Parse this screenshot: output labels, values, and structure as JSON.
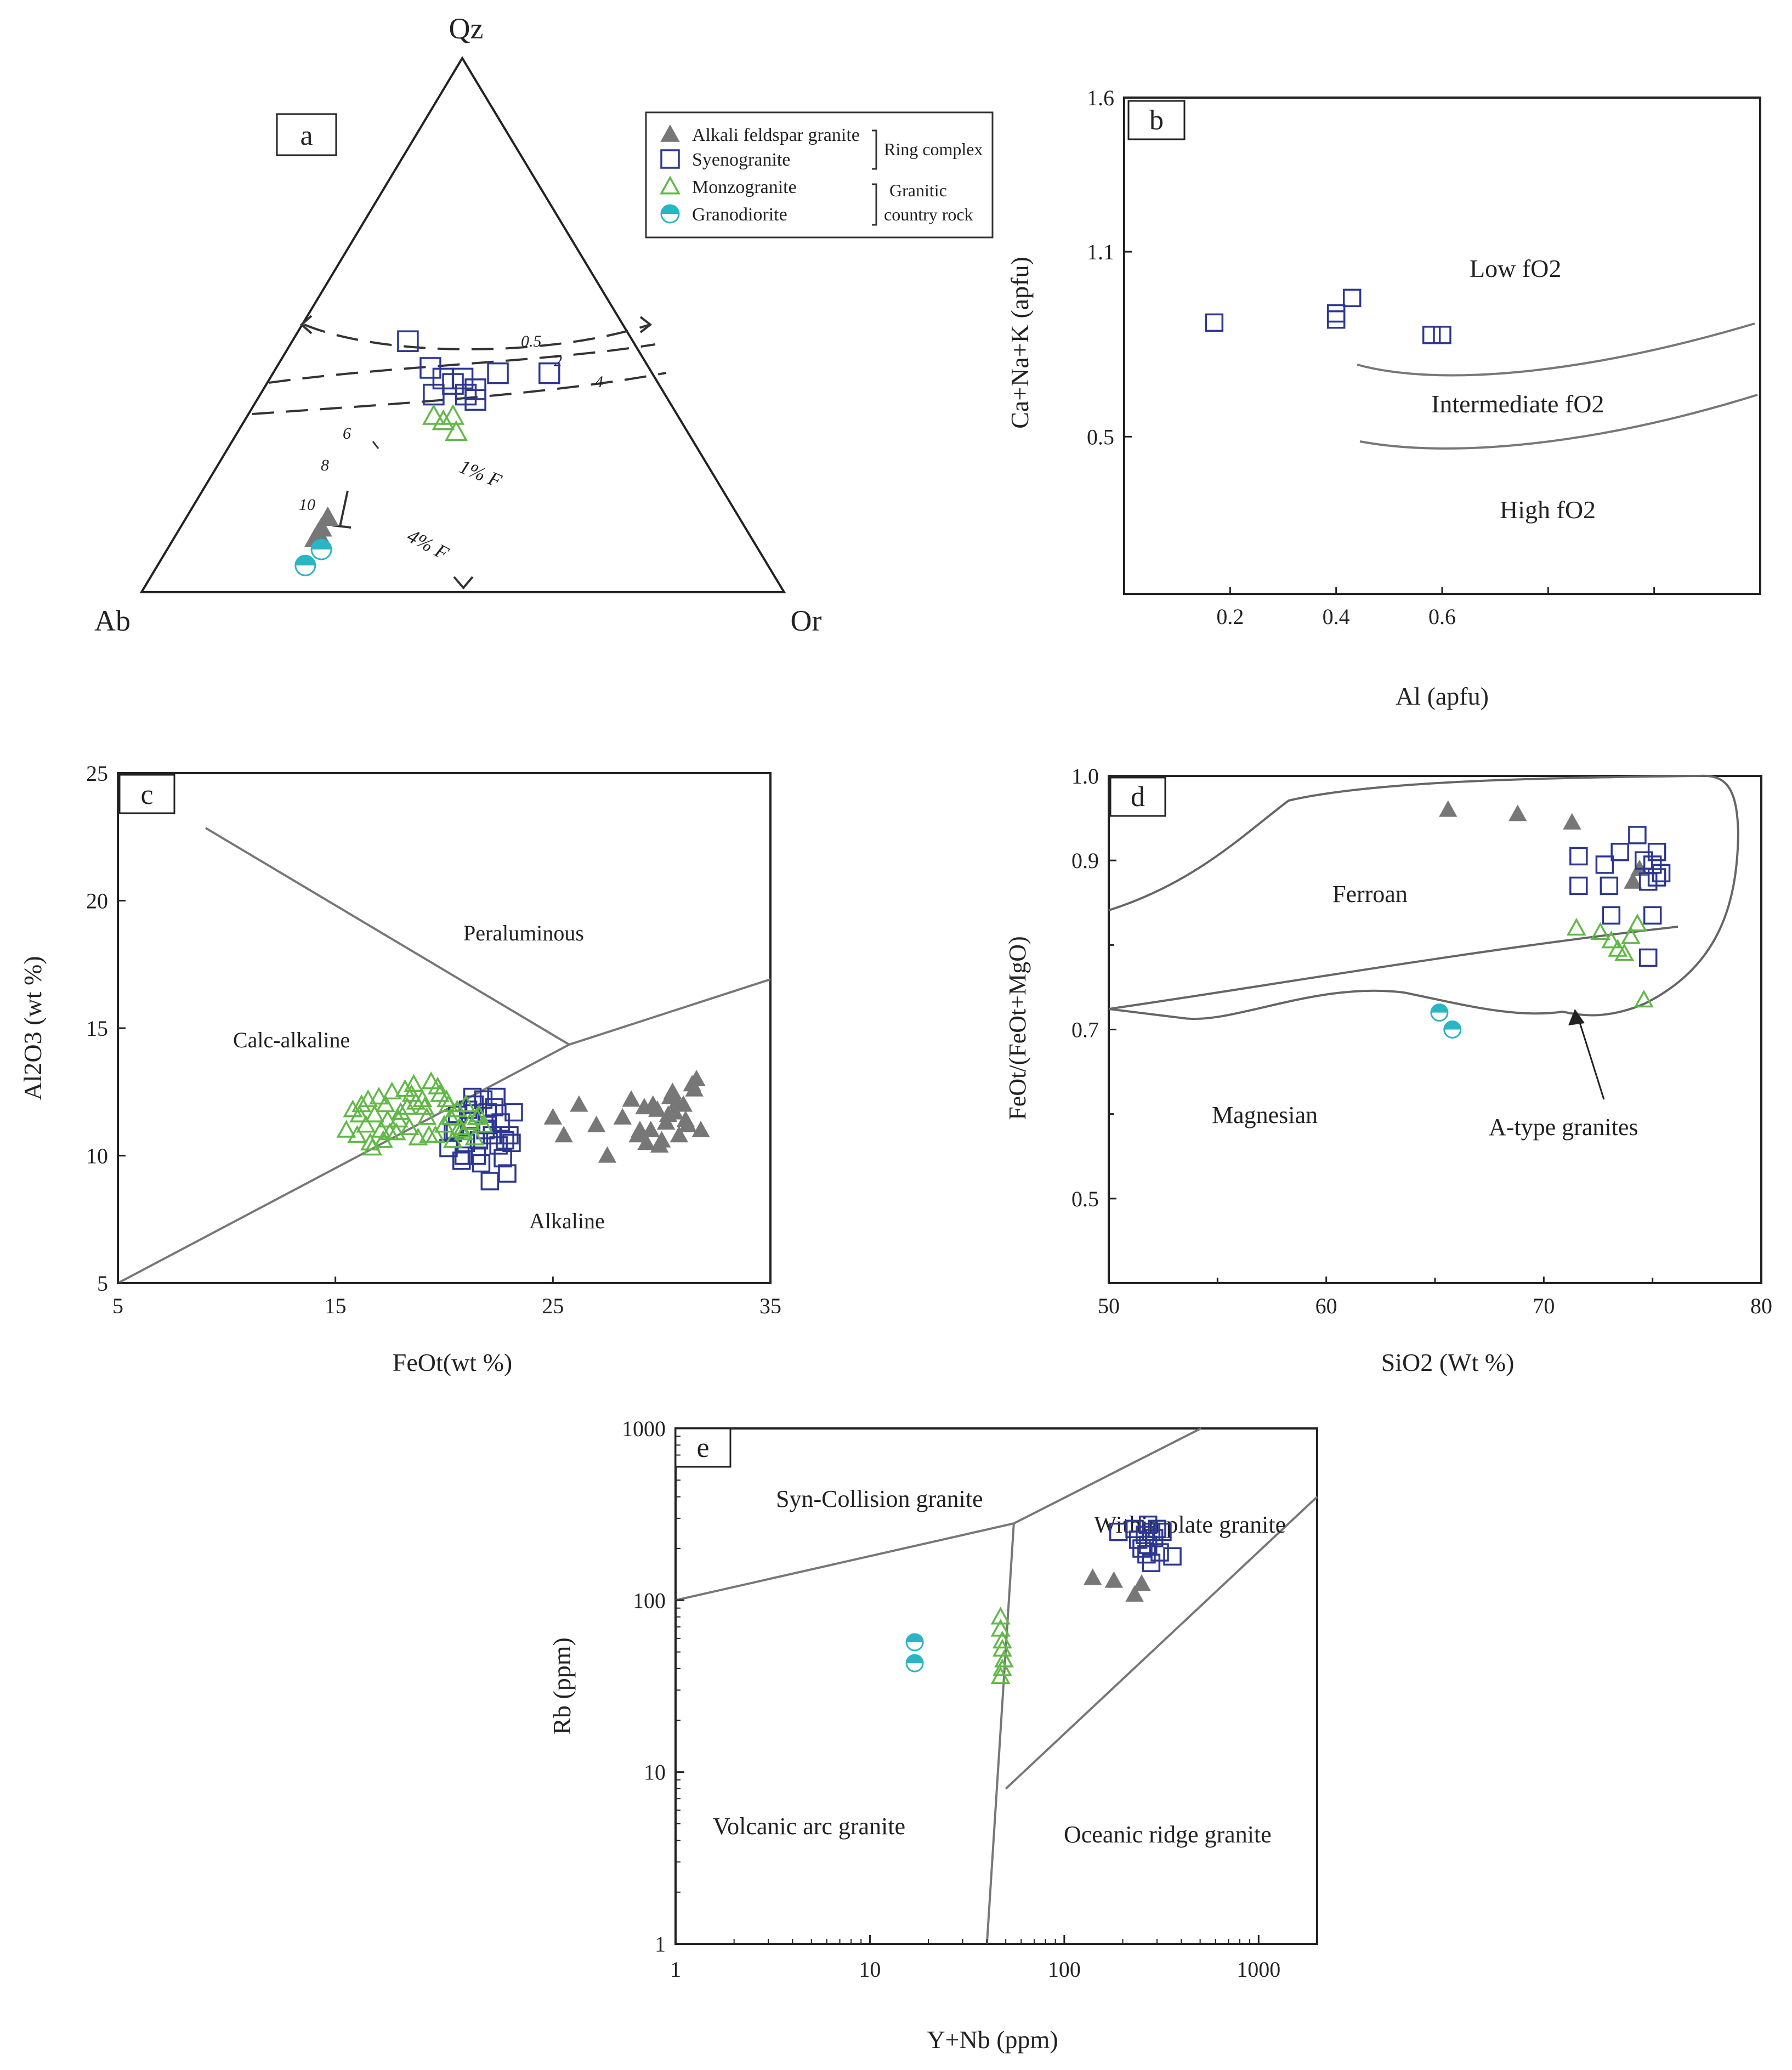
{
  "legend": {
    "entries": [
      {
        "label": "Alkali feldspar granite",
        "marker": "filled-triangle",
        "color": "#777777"
      },
      {
        "label": "Syenogranite",
        "marker": "open-square",
        "color": "#2d3791"
      },
      {
        "label": "Monzogranite",
        "marker": "open-triangle",
        "color": "#62b847"
      },
      {
        "label": "Granodiorite",
        "marker": "half-filled-circle",
        "color": "#29b5c4"
      }
    ],
    "group_ring": "Ring complex",
    "group_country_line1": "Granitic",
    "group_country_line2": "country rock"
  },
  "chart_data": [
    {
      "panel": "a",
      "type": "scatter",
      "subtype": "ternary",
      "vertex_labels": {
        "top": "Qz",
        "left": "Ab",
        "right": "Or"
      },
      "curve_labels": [
        "0.5",
        "2",
        "4",
        "6",
        "8",
        "10",
        "1% F",
        "4% F"
      ],
      "series": [
        {
          "name": "Alkali feldspar granite",
          "points": [
            [
              0.67,
              0.11,
              0.22
            ],
            [
              0.64,
              0.14,
              0.22
            ],
            [
              0.66,
              0.12,
              0.22
            ],
            [
              0.68,
              0.1,
              0.22
            ]
          ]
        },
        {
          "name": "Syenogranite",
          "points": [
            [
              0.16,
              0.41,
              0.43
            ],
            [
              0.24,
              0.41,
              0.35
            ],
            [
              0.29,
              0.38,
              0.33
            ],
            [
              0.35,
              0.47,
              0.18
            ],
            [
              0.34,
              0.42,
              0.24
            ],
            [
              0.33,
              0.4,
              0.27
            ],
            [
              0.32,
              0.39,
              0.29
            ],
            [
              0.31,
              0.37,
              0.32
            ],
            [
              0.3,
              0.4,
              0.3
            ],
            [
              0.3,
              0.36,
              0.34
            ],
            [
              0.36,
              0.37,
              0.27
            ]
          ]
        },
        {
          "name": "Monzogranite",
          "points": [
            [
              0.38,
              0.33,
              0.29
            ],
            [
              0.35,
              0.33,
              0.32
            ],
            [
              0.37,
              0.32,
              0.31
            ],
            [
              0.36,
              0.3,
              0.34
            ]
          ]
        },
        {
          "name": "Granodiorite",
          "points": [
            [
              0.68,
              0.08,
              0.24
            ],
            [
              0.72,
              0.05,
              0.23
            ]
          ]
        }
      ]
    },
    {
      "panel": "b",
      "type": "scatter",
      "xlabel": "Al (apfu)",
      "ylabel": "Ca+Na+K  (apfu)",
      "x_ticks": [
        "0.2",
        "0.4",
        "0.6"
      ],
      "y_ticks": [
        "1.6",
        "1.1",
        "0.5"
      ],
      "xlim": [
        0,
        1.2
      ],
      "ylim": [
        -0.01,
        1.6
      ],
      "region_labels": [
        "Low fO2",
        "Intermediate  fO2",
        "High fO2"
      ],
      "series": [
        {
          "name": "Syenogranite",
          "x": [
            0.17,
            0.4,
            0.4,
            0.43,
            0.58,
            0.6
          ],
          "y": [
            0.87,
            0.9,
            0.88,
            0.95,
            0.83,
            0.83
          ]
        }
      ]
    },
    {
      "panel": "c",
      "type": "scatter",
      "xlabel": "FeOt(wt %)",
      "ylabel": "Al2O3 (wt %)",
      "xlim": [
        5,
        35
      ],
      "ylim": [
        5,
        25
      ],
      "x_ticks": [
        "5",
        "15",
        "25",
        "35"
      ],
      "y_ticks": [
        "5",
        "10",
        "15",
        "20",
        "25"
      ],
      "region_labels": [
        "Peraluminous",
        "Calc-alkaline",
        "Alkaline"
      ],
      "series": [
        {
          "name": "Alkali feldspar granite",
          "x": [
            25.0,
            25.5,
            26.2,
            27.0,
            27.5,
            28.2,
            28.6,
            29.0,
            29.3,
            29.6,
            29.8,
            30.0,
            30.2,
            30.4,
            30.6,
            30.8,
            31.0,
            31.2,
            31.4,
            31.6,
            31.8,
            29.2,
            29.9,
            30.5,
            31.1,
            28.9,
            30.3,
            31.5,
            29.5,
            30.7
          ],
          "y": [
            11.5,
            10.8,
            12.0,
            11.2,
            10.0,
            11.5,
            12.2,
            11.0,
            10.5,
            12.0,
            11.8,
            10.6,
            11.3,
            12.3,
            11.7,
            10.8,
            12.0,
            11.2,
            12.8,
            13.0,
            11.0,
            11.9,
            10.4,
            12.5,
            11.4,
            10.8,
            11.6,
            12.6,
            11.0,
            12.1
          ]
        },
        {
          "name": "Syenogranite",
          "x": [
            20.2,
            20.5,
            20.8,
            21.0,
            21.2,
            21.5,
            21.8,
            22.0,
            22.2,
            22.4,
            22.6,
            22.8,
            23.0,
            20.6,
            21.3,
            21.9,
            22.5,
            23.2,
            22.7,
            21.6,
            21.1,
            22.1,
            20.9,
            21.7,
            22.3,
            22.9,
            21.4,
            20.4,
            23.1,
            22.0
          ],
          "y": [
            10.3,
            11.0,
            9.8,
            10.5,
            11.4,
            10.0,
            12.2,
            11.7,
            10.8,
            12.3,
            11.3,
            10.6,
            10.8,
            11.6,
            12.3,
            11.0,
            10.4,
            11.7,
            9.9,
            10.6,
            11.8,
            9.0,
            10.0,
            9.7,
            11.9,
            9.3,
            12.0,
            10.9,
            10.5,
            11.2
          ]
        },
        {
          "name": "Monzogranite",
          "x": [
            15.5,
            15.8,
            16.0,
            16.2,
            16.4,
            16.6,
            16.8,
            17.0,
            17.2,
            17.4,
            17.6,
            17.8,
            18.0,
            18.2,
            18.4,
            18.6,
            18.8,
            19.0,
            19.2,
            19.4,
            19.6,
            19.8,
            20.0,
            20.2,
            20.4,
            20.6,
            20.8,
            21.0,
            21.2,
            21.4,
            21.6,
            21.8,
            16.1,
            16.7,
            17.3,
            17.9,
            18.5,
            19.1,
            19.7,
            20.3,
            20.9,
            21.5,
            16.5,
            17.5,
            18.3,
            19.3,
            20.1,
            20.7,
            17.1,
            18.7
          ],
          "y": [
            11.0,
            11.8,
            10.8,
            12.0,
            11.2,
            10.5,
            11.6,
            12.3,
            10.6,
            11.4,
            12.5,
            10.9,
            11.7,
            12.6,
            11.1,
            12.8,
            10.7,
            12.2,
            11.5,
            12.9,
            10.8,
            12.4,
            11.2,
            12.0,
            10.6,
            11.8,
            11.0,
            12.0,
            11.3,
            10.7,
            11.6,
            11.2,
            11.6,
            10.3,
            12.0,
            11.4,
            12.4,
            11.9,
            12.7,
            11.5,
            10.9,
            11.5,
            12.2,
            10.9,
            11.9,
            10.8,
            12.2,
            11.1,
            11.0,
            12.1
          ]
        }
      ]
    },
    {
      "panel": "d",
      "type": "scatter",
      "xlabel": "SiO2 (Wt %)",
      "ylabel": "FeOt/(FeOt+MgO)",
      "xlim": [
        50,
        80
      ],
      "ylim": [
        0.4,
        1.0
      ],
      "x_ticks": [
        "50",
        "60",
        "70",
        "80"
      ],
      "y_ticks": [
        "0.5",
        "0.7",
        "0.9",
        "1.0"
      ],
      "region_labels": [
        "Ferroan",
        "Magnesian",
        "A-type granites"
      ],
      "series": [
        {
          "name": "Alkali feldspar granite",
          "x": [
            65.6,
            68.8,
            71.3,
            74.1,
            74.4
          ],
          "y": [
            0.96,
            0.955,
            0.945,
            0.875,
            0.89
          ]
        },
        {
          "name": "Syenogranite",
          "x": [
            71.6,
            71.6,
            72.8,
            73.0,
            73.1,
            73.5,
            74.3,
            74.6,
            74.8,
            75.0,
            75.2,
            75.2,
            75.4,
            75.0,
            74.8
          ],
          "y": [
            0.905,
            0.87,
            0.895,
            0.87,
            0.835,
            0.91,
            0.93,
            0.9,
            0.875,
            0.895,
            0.91,
            0.88,
            0.885,
            0.835,
            0.785
          ]
        },
        {
          "name": "Monzogranite",
          "x": [
            71.5,
            72.6,
            73.1,
            73.4,
            73.7,
            74.0,
            74.3,
            74.6
          ],
          "y": [
            0.82,
            0.815,
            0.805,
            0.795,
            0.79,
            0.81,
            0.825,
            0.735
          ]
        },
        {
          "name": "Granodiorite",
          "x": [
            65.2,
            65.8
          ],
          "y": [
            0.72,
            0.7
          ]
        }
      ]
    },
    {
      "panel": "e",
      "type": "scatter",
      "log_scale": {
        "x": true,
        "y": true
      },
      "xlabel": "Y+Nb  (ppm)",
      "ylabel": "Rb (ppm)",
      "xlim": [
        1,
        2000
      ],
      "ylim": [
        1,
        1000
      ],
      "x_ticks": [
        "1",
        "10",
        "100",
        "1000"
      ],
      "y_ticks": [
        "1",
        "10",
        "100",
        "1000"
      ],
      "region_labels": [
        "Syn-Collision granite",
        "Within plate granite",
        "Volcanic arc granite",
        "Oceanic ridge granite"
      ],
      "series": [
        {
          "name": "Alkali feldspar granite",
          "x": [
            140,
            180,
            230,
            250
          ],
          "y": [
            135,
            130,
            108,
            125
          ]
        },
        {
          "name": "Syenogranite",
          "x": [
            190,
            230,
            260,
            270,
            280,
            290,
            300,
            320,
            250,
            270,
            280,
            360,
            310,
            240,
            265
          ],
          "y": [
            250,
            260,
            240,
            275,
            250,
            230,
            260,
            250,
            200,
            210,
            165,
            180,
            190,
            225,
            185
          ]
        },
        {
          "name": "Monzogranite",
          "x": [
            47,
            47,
            48,
            48,
            49,
            48,
            47
          ],
          "y": [
            80,
            68,
            58,
            52,
            45,
            40,
            36
          ]
        },
        {
          "name": "Granodiorite",
          "x": [
            17,
            17
          ],
          "y": [
            57,
            43
          ]
        }
      ]
    }
  ]
}
